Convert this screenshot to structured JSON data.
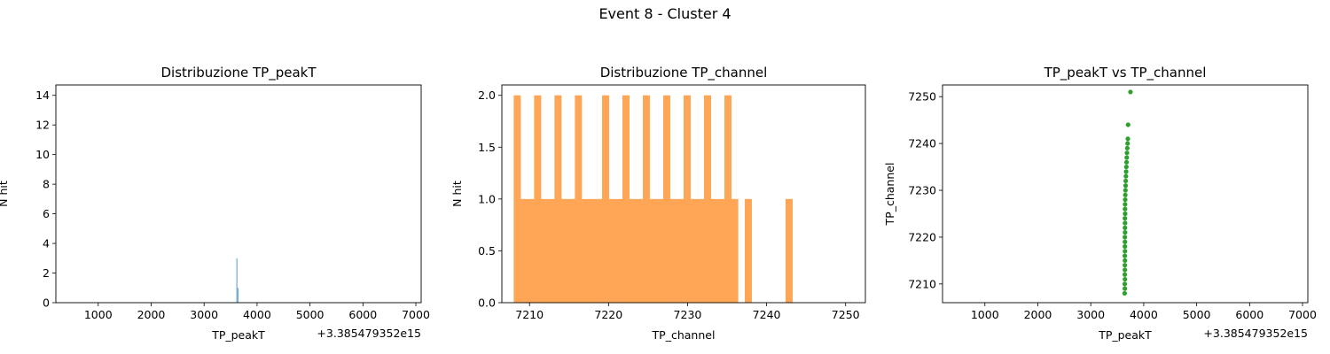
{
  "figure": {
    "suptitle": "Event 8 - Cluster 4"
  },
  "colors": {
    "hist_peakT": "#1f77b4",
    "hist_channel": "#ffa556",
    "scatter": "#2ca02c"
  },
  "chart_data": [
    {
      "type": "bar",
      "title": "Distribuzione TP_peakT",
      "xlabel": "TP_peakT",
      "ylabel": "N hit",
      "x_offset_label": "+3.385479352e15",
      "xlim": [
        200,
        7100
      ],
      "ylim": [
        0,
        14.7
      ],
      "xticks": [
        1000,
        2000,
        3000,
        4000,
        5000,
        6000,
        7000
      ],
      "yticks": [
        0,
        2,
        4,
        6,
        8,
        10,
        12,
        14
      ],
      "bins": [
        {
          "x0": 3610,
          "x1": 3628,
          "value": 3
        },
        {
          "x0": 3630,
          "x1": 3648,
          "value": 1
        }
      ]
    },
    {
      "type": "bar",
      "title": "Distribuzione TP_channel",
      "xlabel": "TP_channel",
      "ylabel": "N hit",
      "xlim": [
        7206.5,
        7252.5
      ],
      "ylim": [
        0,
        2.1
      ],
      "xticks": [
        7210,
        7220,
        7230,
        7240,
        7250
      ],
      "yticks": [
        0.0,
        0.5,
        1.0,
        1.5,
        2.0
      ],
      "bin_start": 7208,
      "bin_width": 0.86,
      "values": [
        2,
        1,
        1,
        2,
        1,
        1,
        2,
        1,
        1,
        2,
        1,
        1,
        1,
        2,
        1,
        1,
        2,
        1,
        1,
        2,
        1,
        1,
        2,
        1,
        1,
        2,
        1,
        1,
        2,
        1,
        1,
        2,
        1,
        0,
        1,
        0,
        0,
        0,
        0,
        0,
        1,
        0,
        0,
        0,
        0,
        0,
        0,
        0,
        0,
        0,
        0,
        0
      ]
    },
    {
      "type": "scatter",
      "title": "TP_peakT vs TP_channel",
      "xlabel": "TP_peakT",
      "ylabel": "TP_channel",
      "x_offset_label": "+3.385479352e15",
      "xlim": [
        200,
        7100
      ],
      "ylim": [
        7206,
        7252.5
      ],
      "xticks": [
        1000,
        2000,
        3000,
        4000,
        5000,
        6000,
        7000
      ],
      "yticks": [
        7210,
        7220,
        7230,
        7240,
        7250
      ],
      "points": [
        [
          3640,
          7208
        ],
        [
          3644,
          7209
        ],
        [
          3642,
          7210
        ],
        [
          3646,
          7211
        ],
        [
          3643,
          7212
        ],
        [
          3645,
          7213
        ],
        [
          3644,
          7214
        ],
        [
          3646,
          7215
        ],
        [
          3643,
          7216
        ],
        [
          3647,
          7217
        ],
        [
          3645,
          7218
        ],
        [
          3646,
          7219
        ],
        [
          3644,
          7220
        ],
        [
          3648,
          7221
        ],
        [
          3646,
          7222
        ],
        [
          3647,
          7223
        ],
        [
          3645,
          7224
        ],
        [
          3649,
          7225
        ],
        [
          3647,
          7226
        ],
        [
          3648,
          7227
        ],
        [
          3650,
          7228
        ],
        [
          3652,
          7229
        ],
        [
          3655,
          7230
        ],
        [
          3658,
          7231
        ],
        [
          3660,
          7232
        ],
        [
          3664,
          7233
        ],
        [
          3668,
          7234
        ],
        [
          3672,
          7235
        ],
        [
          3676,
          7236
        ],
        [
          3680,
          7237
        ],
        [
          3684,
          7238
        ],
        [
          3690,
          7239
        ],
        [
          3696,
          7240
        ],
        [
          3700,
          7241
        ],
        [
          3705,
          7244
        ],
        [
          3750,
          7251
        ]
      ]
    }
  ]
}
